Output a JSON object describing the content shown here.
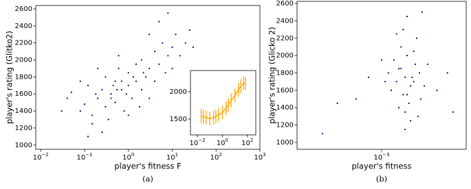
{
  "chart_data": [
    {
      "type": "scatter",
      "caption": "(a)",
      "y_label": "player's rating (Glitko2)",
      "x_label": "player's fitness F",
      "x_log": true,
      "color": "#00007f",
      "xlim": [
        0.0077,
        1000
      ],
      "ylim": [
        950,
        2640
      ],
      "xticks": [
        {
          "value": 0.01,
          "label": "10−2"
        },
        {
          "value": 0.1,
          "label": "10−1"
        },
        {
          "value": 1,
          "label": "100"
        },
        {
          "value": 10,
          "label": "101"
        },
        {
          "value": 100,
          "label": "102"
        },
        {
          "value": 1000,
          "label": "103"
        }
      ],
      "yticks": [
        1000,
        1200,
        1400,
        1600,
        1800,
        2000,
        2200,
        2400,
        2600
      ],
      "x": [
        0.04,
        0.05,
        0.08,
        0.1,
        0.12,
        0.15,
        0.2,
        0.25,
        0.3,
        0.3,
        0.4,
        0.5,
        0.5,
        0.6,
        0.7,
        0.8,
        1,
        1,
        1.2,
        1.5,
        1.5,
        2,
        2,
        2.5,
        3,
        3,
        4,
        4,
        5,
        6,
        7,
        8,
        10,
        10,
        12,
        15,
        20,
        25,
        0.15,
        0.08,
        0.2,
        0.35,
        1,
        0.6,
        3,
        1.8,
        0.9,
        0.45,
        5,
        8,
        0.03,
        0.25,
        0.12,
        30,
        0.7,
        2.2,
        1.3,
        0.4,
        0.18,
        0.55
      ],
      "values": [
        1550,
        1620,
        1400,
        1480,
        1700,
        1350,
        1550,
        1650,
        1450,
        1800,
        1600,
        1500,
        1750,
        1900,
        1650,
        1400,
        1700,
        1850,
        1550,
        1950,
        1750,
        1650,
        2000,
        1800,
        1900,
        1550,
        2100,
        1750,
        1950,
        2200,
        1850,
        2050,
        2150,
        1900,
        2300,
        2050,
        2200,
        2350,
        1250,
        1750,
        1900,
        1300,
        1350,
        2050,
        2300,
        1450,
        1600,
        1700,
        2450,
        2550,
        1400,
        1150,
        1100,
        2150,
        1750,
        1850,
        1800,
        1550,
        1600,
        1650
      ]
    },
    {
      "type": "errorline",
      "x_log": true,
      "color": "#ffa500",
      "xlim": [
        0.0028,
        470
      ],
      "ylim": [
        1212,
        2388
      ],
      "xticks": [
        {
          "value": 0.01,
          "label": "10−2"
        },
        {
          "value": 1,
          "label": "100"
        },
        {
          "value": 100,
          "label": "102"
        }
      ],
      "yticks": [
        1500,
        2000
      ],
      "x": [
        0.02,
        0.03,
        0.05,
        0.1,
        0.2,
        0.3,
        0.5,
        1,
        2,
        3,
        5,
        10,
        20,
        30,
        50,
        70
      ],
      "values": [
        1560,
        1540,
        1530,
        1510,
        1530,
        1550,
        1580,
        1620,
        1700,
        1760,
        1840,
        1930,
        2040,
        2100,
        2160,
        2150
      ],
      "errors": [
        130,
        130,
        125,
        125,
        125,
        125,
        125,
        125,
        125,
        125,
        125,
        125,
        125,
        125,
        120,
        120
      ]
    },
    {
      "type": "scatter",
      "caption": "(b)",
      "y_label": "player's rating (Glicko 2)",
      "x_label": "player's fitness",
      "x_log": true,
      "color": "#00007f",
      "xlim": [
        0.0001,
        0.01
      ],
      "ylim": [
        921,
        2624
      ],
      "xticks": [
        {
          "value": 0.001,
          "label": "10−3"
        }
      ],
      "yticks": [
        1000,
        1200,
        1400,
        1600,
        1800,
        2000,
        2200,
        2400,
        2600
      ],
      "x": [
        0.0019,
        0.0022,
        0.0016,
        0.0025,
        0.0018,
        0.002,
        0.0015,
        0.0028,
        0.0013,
        0.0021,
        0.0017,
        0.0023,
        0.0032,
        0.0014,
        0.0019,
        0.0026,
        0.0012,
        0.002,
        0.0035,
        0.0016,
        0.0024,
        0.0018,
        0.0029,
        0.0011,
        0.0022,
        0.0045,
        0.0007,
        0.0005,
        0.0003,
        0.0002,
        0.007,
        0.006,
        0.002,
        0.003,
        0.0015,
        0.0027,
        0.0019,
        0.001,
        0.0024,
        0.0017
      ],
      "values": [
        1750,
        1650,
        1850,
        1900,
        1550,
        2000,
        1700,
        1800,
        1600,
        1450,
        2100,
        1750,
        1650,
        1950,
        1350,
        2200,
        1800,
        1550,
        1900,
        1400,
        1700,
        2300,
        1500,
        1700,
        1250,
        1600,
        1750,
        1500,
        1450,
        1100,
        1350,
        1800,
        2450,
        2500,
        2250,
        1300,
        1150,
        1950,
        2050,
        1850
      ]
    }
  ]
}
